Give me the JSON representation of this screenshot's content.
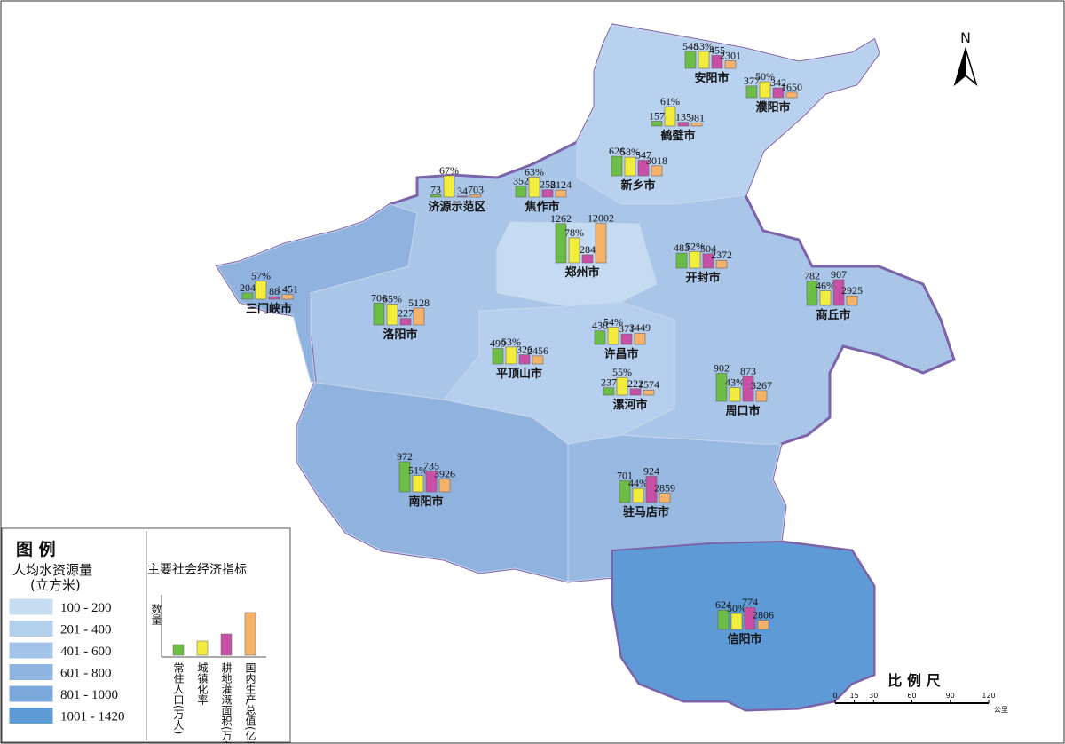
{
  "north": "N",
  "legend": {
    "title": "图 例",
    "water_title": "人均水资源量",
    "water_unit": "(立方米)",
    "classes": [
      {
        "label": "100 - 200",
        "color": "#c6dcf1"
      },
      {
        "label": "201 - 400",
        "color": "#b2cfec"
      },
      {
        "label": "401 - 600",
        "color": "#a3c4e8"
      },
      {
        "label": "601 - 800",
        "color": "#8fb4e0"
      },
      {
        "label": "801 - 1000",
        "color": "#7aa8dc"
      },
      {
        "label": "1001 - 1420",
        "color": "#5d9ad6"
      }
    ],
    "indicator_title": "主要社会经济指标",
    "indicator_axis": "数量",
    "indicators": [
      {
        "name": "常住人口(万人)",
        "color": "#6cbd45"
      },
      {
        "name": "城镇化率",
        "color": "#f2ec3c"
      },
      {
        "name": "耕地灌溉面积(万亩)",
        "color": "#c84fa6"
      },
      {
        "name": "国内生产总值(亿元)",
        "color": "#f7b26a"
      }
    ]
  },
  "scale": {
    "title": "比 例 尺",
    "ticks": [
      0,
      15,
      30,
      60,
      90,
      120
    ],
    "unit": "公里"
  },
  "cities": [
    {
      "name": "安阳市",
      "population": 548,
      "urbanization": {
        "value": 53,
        "label": "53%"
      },
      "irrigation": 455,
      "gdp": 2301
    },
    {
      "name": "濮阳市",
      "population": 377,
      "urbanization": {
        "value": 50,
        "label": "50%"
      },
      "irrigation": 342,
      "gdp": 1650
    },
    {
      "name": "鹤壁市",
      "population": 157,
      "urbanization": {
        "value": 61,
        "label": "61%"
      },
      "irrigation": 135,
      "gdp": 981
    },
    {
      "name": "新乡市",
      "population": 626,
      "urbanization": {
        "value": 58,
        "label": "58%"
      },
      "irrigation": 547,
      "gdp": 3018
    },
    {
      "name": "焦作市",
      "population": 352,
      "urbanization": {
        "value": 63,
        "label": "63%"
      },
      "irrigation": 258,
      "gdp": 2124
    },
    {
      "name": "济源示范区",
      "population": 73,
      "urbanization": {
        "value": 67,
        "label": "67%"
      },
      "irrigation": 34,
      "gdp": 703
    },
    {
      "name": "郑州市",
      "population": 1262,
      "urbanization": {
        "value": 78,
        "label": "78%"
      },
      "irrigation": 284,
      "gdp": 12002
    },
    {
      "name": "开封市",
      "population": 483,
      "urbanization": {
        "value": 52,
        "label": "52%"
      },
      "irrigation": 504,
      "gdp": 2372
    },
    {
      "name": "商丘市",
      "population": 782,
      "urbanization": {
        "value": 46,
        "label": "46%"
      },
      "irrigation": 907,
      "gdp": 2925
    },
    {
      "name": "三门峡市",
      "population": 204,
      "urbanization": {
        "value": 57,
        "label": "57%"
      },
      "irrigation": 88,
      "gdp": 1451
    },
    {
      "name": "洛阳市",
      "population": 706,
      "urbanization": {
        "value": 65,
        "label": "65%"
      },
      "irrigation": 227,
      "gdp": 5128
    },
    {
      "name": "许昌市",
      "population": 438,
      "urbanization": {
        "value": 54,
        "label": "54%"
      },
      "irrigation": 371,
      "gdp": 3449
    },
    {
      "name": "平顶山市",
      "population": 499,
      "urbanization": {
        "value": 53,
        "label": "53%"
      },
      "irrigation": 326,
      "gdp": 2456
    },
    {
      "name": "漯河市",
      "population": 237,
      "urbanization": {
        "value": 55,
        "label": "55%"
      },
      "irrigation": 222,
      "gdp": 1574
    },
    {
      "name": "周口市",
      "population": 902,
      "urbanization": {
        "value": 43,
        "label": "43%"
      },
      "irrigation": 873,
      "gdp": 3267
    },
    {
      "name": "南阳市",
      "population": 972,
      "urbanization": {
        "value": 51,
        "label": "51%"
      },
      "irrigation": 735,
      "gdp": 3926
    },
    {
      "name": "驻马店市",
      "population": 701,
      "urbanization": {
        "value": 44,
        "label": "44%"
      },
      "irrigation": 924,
      "gdp": 2859
    },
    {
      "name": "信阳市",
      "population": 624,
      "urbanization": {
        "value": 50,
        "label": "50%"
      },
      "irrigation": 774,
      "gdp": 2806
    }
  ]
}
